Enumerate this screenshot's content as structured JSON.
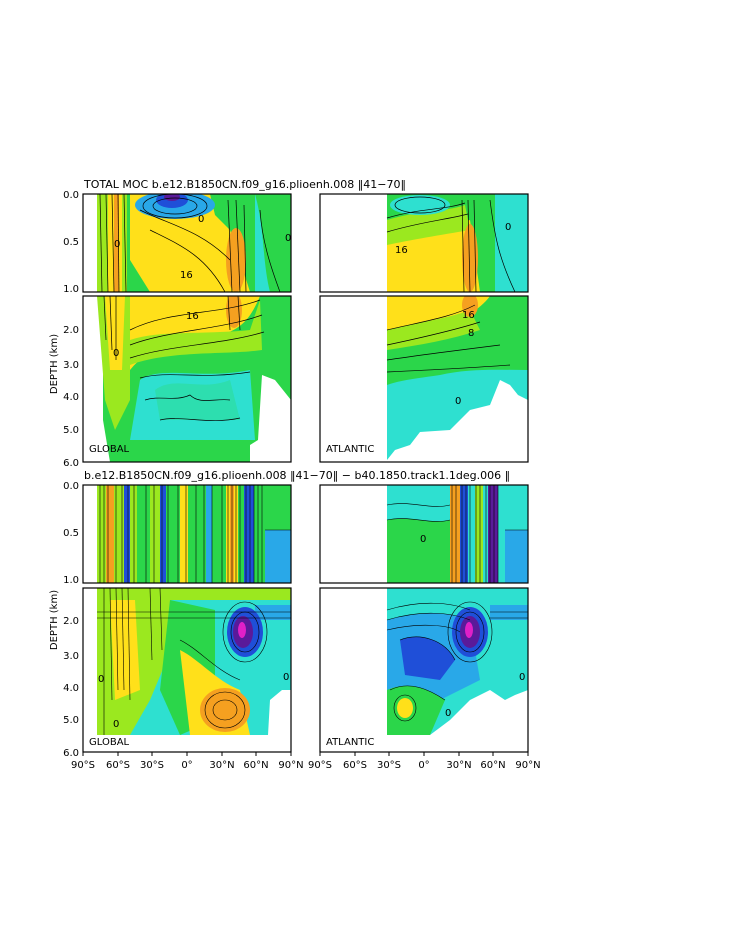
{
  "titles": {
    "top": "TOTAL MOC b.e12.B1850CN.f09_g16.plioenh.008 ‌‌‖‌41−70‖",
    "bottom": "b.e12.B1850CN.f09_g16.plioenh.008 ‌‌‖‌41−70‖ − b40.1850.track1.1deg.006 ‖"
  },
  "axes": {
    "ylabel": "DEPTH (km)",
    "upper_ticks": [
      "0.0",
      "0.5",
      "1.0"
    ],
    "lower_ticks": [
      "2.0",
      "3.0",
      "4.0",
      "5.0",
      "6.0"
    ],
    "xticks": [
      "90°S",
      "60°S",
      "30°S",
      "0°",
      "30°N",
      "60°N",
      "90°N"
    ]
  },
  "panels": {
    "global_label": "GLOBAL",
    "atlantic_label": "ATLANTIC"
  },
  "contour_labels": {
    "top_global": [
      "16",
      "16",
      "0",
      "0",
      "0",
      "0"
    ],
    "top_atlantic": [
      "16",
      "16",
      "8",
      "0",
      "0"
    ],
    "bottom_global": [
      "0",
      "0",
      "0",
      "0"
    ],
    "bottom_atlantic": [
      "0",
      "0",
      "0"
    ]
  },
  "colors": {
    "purple": "#5a1a9a",
    "blue": "#1f4fd8",
    "lightblue": "#29a8e8",
    "cyan": "#2ee0d0",
    "green": "#2bd64a",
    "lime": "#9be81f",
    "yellow": "#ffe01a",
    "orange": "#f5a020",
    "magenta": "#e020c8"
  },
  "chart_data": [
    {
      "type": "heatmap",
      "title": "TOTAL MOC b.e12.B1850CN.f09_g16.plioenh.008 ‖ 41−70 ‖",
      "panel": "GLOBAL",
      "xlabel": "",
      "ylabel": "DEPTH (km)",
      "xlim": [
        -90,
        90
      ],
      "ylim": [
        6.0,
        0.0
      ],
      "y_scale": "stretched upper 1 km",
      "contour_labels": [
        16,
        16,
        0,
        0,
        0,
        0
      ]
    },
    {
      "type": "heatmap",
      "panel": "ATLANTIC",
      "ylabel": "DEPTH (km)",
      "xlim": [
        -90,
        90
      ],
      "ylim": [
        6.0,
        0.0
      ],
      "contour_labels": [
        16,
        16,
        8,
        0,
        0
      ]
    },
    {
      "type": "heatmap",
      "title": "b.e12.B1850CN.f09_g16.plioenh.008 ‖ 41−70 ‖ − b40.1850.track1.1deg.006 ‖",
      "panel": "GLOBAL",
      "ylabel": "DEPTH (km)",
      "xlim": [
        -90,
        90
      ],
      "ylim": [
        6.0,
        0.0
      ],
      "contour_labels": [
        0,
        0,
        0,
        0
      ]
    },
    {
      "type": "heatmap",
      "panel": "ATLANTIC",
      "ylabel": "DEPTH (km)",
      "xlim": [
        -90,
        90
      ],
      "ylim": [
        6.0,
        0.0
      ],
      "contour_labels": [
        0,
        0,
        0
      ]
    }
  ]
}
